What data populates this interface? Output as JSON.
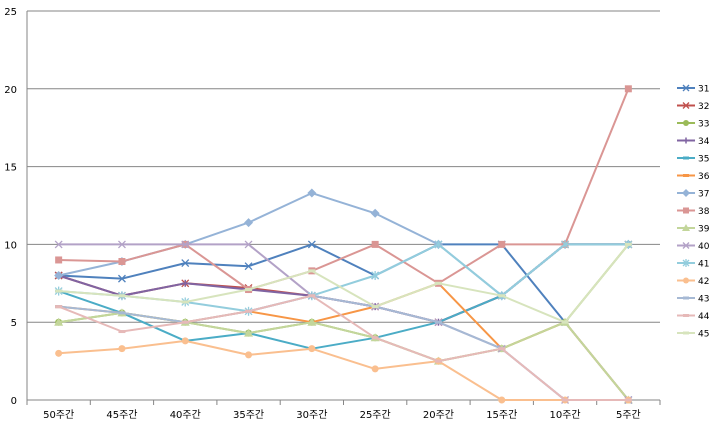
{
  "chart_data": {
    "type": "line",
    "title": "",
    "xlabel": "",
    "ylabel": "",
    "ylim": [
      0,
      25
    ],
    "y_ticks": [
      0,
      5,
      10,
      15,
      20,
      25
    ],
    "grid": "horizontal",
    "legend_position": "right",
    "categories": [
      "50주간",
      "45주간",
      "40주간",
      "35주간",
      "30주간",
      "25주간",
      "20주간",
      "15주간",
      "10주간",
      "5주간"
    ],
    "series": [
      {
        "name": "31",
        "color": "#4f81bd",
        "marker": "x",
        "values": [
          8,
          7.8,
          8.8,
          8.6,
          10,
          8,
          10,
          10,
          5,
          0
        ]
      },
      {
        "name": "32",
        "color": "#c0504d",
        "marker": "x",
        "values": [
          8,
          6.7,
          7.5,
          7.2,
          6.7,
          6,
          5,
          6.7,
          10,
          10
        ]
      },
      {
        "name": "33",
        "color": "#9bbb59",
        "marker": "circle",
        "values": [
          5,
          5.6,
          5,
          4.3,
          5,
          4,
          2.5,
          3.3,
          5,
          10
        ]
      },
      {
        "name": "34",
        "color": "#8064a2",
        "marker": "plus",
        "values": [
          8,
          6.7,
          7.5,
          7.1,
          6.7,
          6,
          5,
          6.7,
          10,
          10
        ]
      },
      {
        "name": "35",
        "color": "#4bacc6",
        "marker": "dash",
        "values": [
          7,
          5.6,
          3.8,
          4.3,
          3.3,
          4,
          5,
          6.7,
          10,
          10
        ]
      },
      {
        "name": "36",
        "color": "#f79646",
        "marker": "dash",
        "values": [
          6,
          5.6,
          5,
          5.7,
          5,
          6,
          7.5,
          3.3,
          5,
          0
        ]
      },
      {
        "name": "37",
        "color": "#95b3d7",
        "marker": "diamond",
        "values": [
          8,
          8.9,
          10,
          11.4,
          13.3,
          12,
          10,
          6.7,
          10,
          10
        ]
      },
      {
        "name": "38",
        "color": "#da9694",
        "marker": "square",
        "values": [
          9,
          8.9,
          10,
          7.1,
          8.3,
          10,
          7.5,
          10,
          10,
          20
        ]
      },
      {
        "name": "39",
        "color": "#c3d69b",
        "marker": "triangle",
        "values": [
          5,
          5.6,
          5,
          4.3,
          5,
          4,
          2.5,
          3.3,
          5,
          0
        ]
      },
      {
        "name": "40",
        "color": "#b3a2c7",
        "marker": "x",
        "values": [
          10,
          10,
          10,
          10,
          6.7,
          6,
          5,
          3.3,
          0,
          0
        ]
      },
      {
        "name": "41",
        "color": "#93cddd",
        "marker": "star",
        "values": [
          7,
          6.7,
          6.3,
          5.7,
          6.7,
          8,
          10,
          6.7,
          10,
          10
        ]
      },
      {
        "name": "42",
        "color": "#fabf8f",
        "marker": "circle",
        "values": [
          3,
          3.3,
          3.8,
          2.9,
          3.3,
          2,
          2.5,
          0,
          0,
          0
        ]
      },
      {
        "name": "43",
        "color": "#a6b9d4",
        "marker": "dash",
        "values": [
          6,
          5.6,
          5,
          5.7,
          6.7,
          6,
          5,
          3.3,
          0,
          0
        ]
      },
      {
        "name": "44",
        "color": "#e6b9b8",
        "marker": "dash",
        "values": [
          6,
          4.4,
          5,
          5.7,
          6.7,
          4,
          2.5,
          3.3,
          0,
          0
        ]
      },
      {
        "name": "45",
        "color": "#d7e4bd",
        "marker": "dash",
        "values": [
          7,
          6.7,
          6.3,
          7.1,
          8.3,
          6,
          7.5,
          6.7,
          5,
          10
        ]
      }
    ]
  }
}
